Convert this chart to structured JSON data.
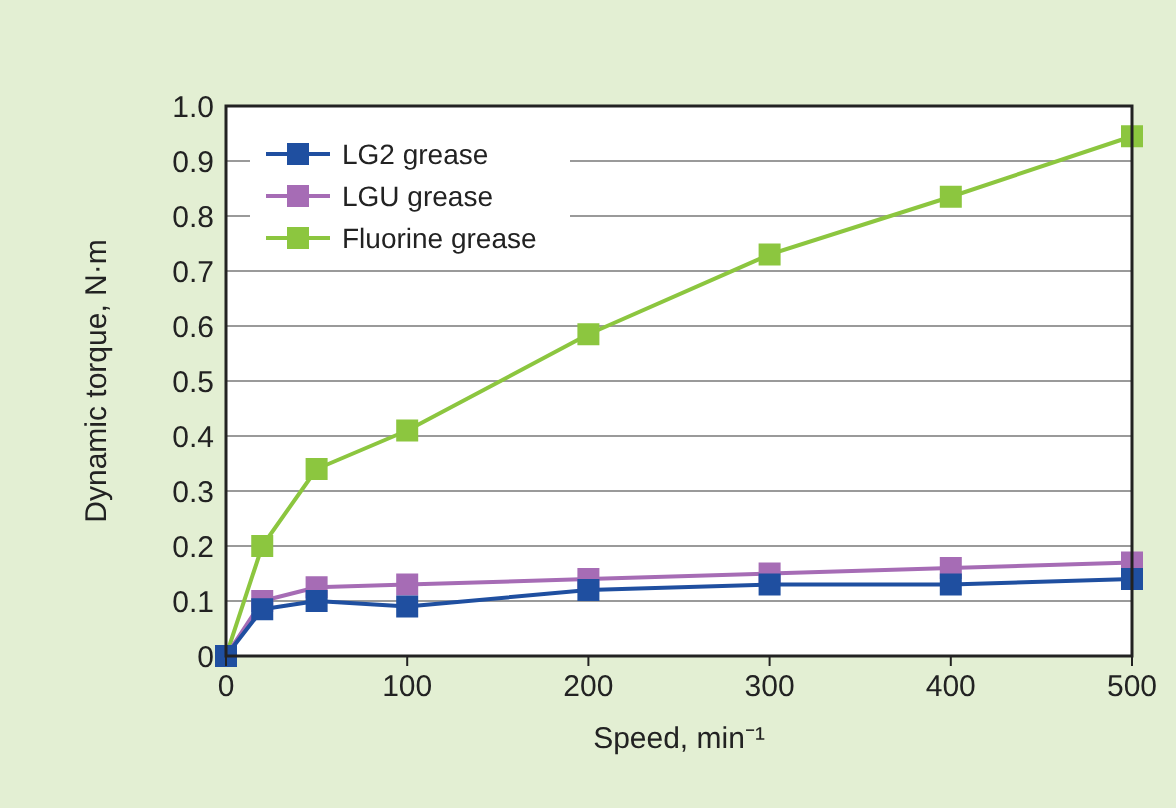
{
  "chart_data": {
    "type": "line",
    "xlabel": "Speed, min⁻¹",
    "ylabel": "Dynamic torque, N·m",
    "x": [
      0,
      20,
      50,
      100,
      200,
      300,
      400,
      500
    ],
    "series": [
      {
        "name": "LG2 grease",
        "color": "#1f4fa0",
        "values": [
          0,
          0.085,
          0.1,
          0.09,
          0.12,
          0.13,
          0.13,
          0.14
        ]
      },
      {
        "name": "LGU grease",
        "color": "#a66cb5",
        "values": [
          0,
          0.1,
          0.125,
          0.13,
          0.14,
          0.15,
          0.16,
          0.17
        ]
      },
      {
        "name": "Fluorine grease",
        "color": "#8cc63f",
        "values": [
          0,
          0.2,
          0.34,
          0.41,
          0.585,
          0.73,
          0.835,
          0.945
        ]
      }
    ],
    "xlim": [
      0,
      500
    ],
    "xticks": [
      0,
      100,
      200,
      300,
      400,
      500
    ],
    "ylim": [
      0,
      1
    ],
    "yticks": [
      {
        "value": 0,
        "label": "0"
      },
      0.1,
      0.2,
      0.3,
      0.4,
      0.5,
      0.6,
      0.7,
      0.8,
      0.9,
      {
        "value": 1,
        "label": "1.0"
      }
    ],
    "grid": "y",
    "legend": "top left",
    "marker": "square",
    "line_style": "solid"
  }
}
